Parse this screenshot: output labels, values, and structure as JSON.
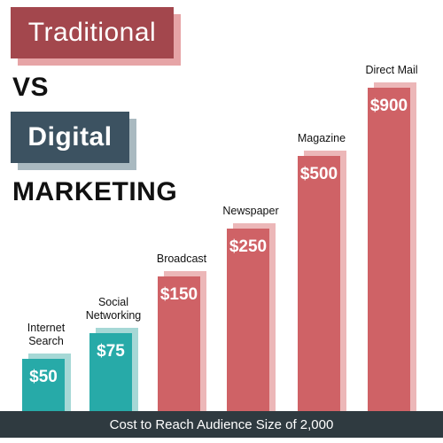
{
  "header": {
    "title_traditional": "Traditional",
    "title_vs": "VS",
    "title_digital": "Digital",
    "title_marketing": "MARKETING"
  },
  "colors": {
    "traditional": "#a3474d",
    "traditional_shadow": "#e6a4a6",
    "digital": "#3c5261",
    "digital_shadow": "#a9b9c0",
    "bar_teal": "#27aaa8",
    "bar_teal_shadow": "#a6d8d6",
    "bar_red": "#cf6266",
    "bar_red_shadow": "#ecb7b8",
    "footer": "#2f3a40"
  },
  "chart_data": {
    "type": "bar",
    "categories": [
      "Internet Search",
      "Social Networking",
      "Broadcast",
      "Newspaper",
      "Magazine",
      "Direct Mail"
    ],
    "category_label_lines": [
      [
        "Internet",
        "Search"
      ],
      [
        "Social",
        "Networking"
      ],
      [
        "Broadcast"
      ],
      [
        "Newspaper"
      ],
      [
        "Magazine"
      ],
      [
        "Direct Mail"
      ]
    ],
    "values": [
      50,
      75,
      150,
      250,
      500,
      900
    ],
    "value_labels": [
      "$50",
      "$75",
      "$150",
      "$250",
      "$500",
      "$900"
    ],
    "groups": [
      "digital",
      "digital",
      "traditional",
      "traditional",
      "traditional",
      "traditional"
    ],
    "xlabel": "Cost to Reach Audience Size of 2,000",
    "ylabel": "",
    "title": "",
    "legend": "none",
    "grid": false
  }
}
